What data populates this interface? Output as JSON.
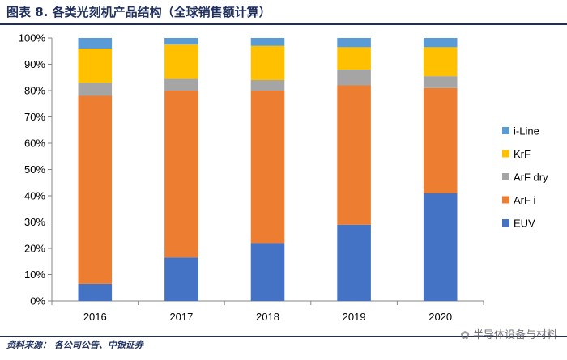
{
  "header": {
    "title": "图表 8. 各类光刻机产品结构（全球销售额计算）"
  },
  "footer": {
    "source": "资料来源： 各公司公告、中银证券",
    "watermark": "半导体设备与材料"
  },
  "colors": {
    "EUV": "#4472c4",
    "ArF i": "#ed7d31",
    "ArF dry": "#a5a5a5",
    "KrF": "#ffc000",
    "i-Line": "#5b9bd5"
  },
  "chart_data": {
    "type": "bar",
    "stacked": true,
    "title": "",
    "xlabel": "",
    "ylabel": "",
    "ylim": [
      0,
      100
    ],
    "y_ticks": [
      "0%",
      "10%",
      "20%",
      "30%",
      "40%",
      "50%",
      "60%",
      "70%",
      "80%",
      "90%",
      "100%"
    ],
    "categories": [
      "2016",
      "2017",
      "2018",
      "2019",
      "2020"
    ],
    "series": [
      {
        "name": "EUV",
        "values": [
          6.5,
          16.5,
          22,
          29,
          41
        ]
      },
      {
        "name": "ArF i",
        "values": [
          71.5,
          63.5,
          58,
          53,
          40
        ]
      },
      {
        "name": "ArF dry",
        "values": [
          5,
          4.5,
          4,
          6,
          4.5
        ]
      },
      {
        "name": "KrF",
        "values": [
          13,
          13,
          13,
          8.5,
          11
        ]
      },
      {
        "name": "i-Line",
        "values": [
          4,
          2.5,
          3,
          3.5,
          3.5
        ]
      }
    ],
    "legend_order": [
      "i-Line",
      "KrF",
      "ArF dry",
      "ArF i",
      "EUV"
    ],
    "legend_position": "right",
    "grid": false
  }
}
